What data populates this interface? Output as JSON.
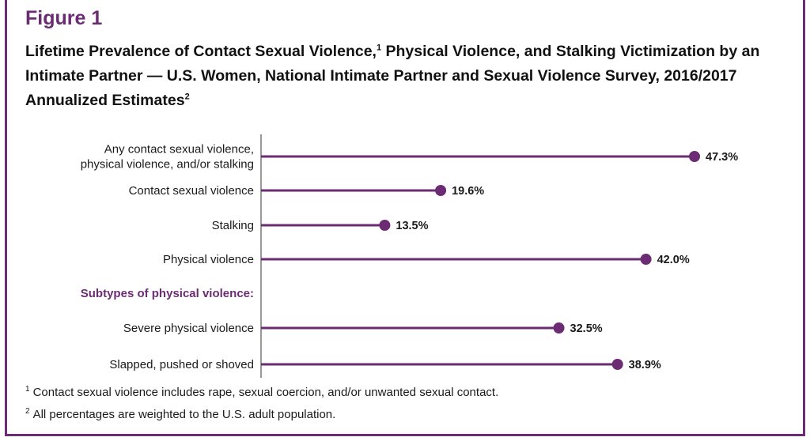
{
  "figure_label": "Figure 1",
  "title": {
    "part1": "Lifetime Prevalence of Contact Sexual Violence,",
    "sup1": "1",
    "part2": " Physical Violence, and Stalking Victimization by an Intimate Partner — U.S. Women, National Intimate Partner and Sexual Violence Survey, 2016/2017 Annualized Estimates",
    "sup2": "2"
  },
  "colors": {
    "accent": "#6b2c73"
  },
  "chart_data": {
    "type": "bar",
    "style": "lollipop",
    "orientation": "horizontal",
    "categories": [
      [
        "Any contact sexual violence,",
        "physical violence, and/or stalking"
      ],
      [
        "Contact sexual violence"
      ],
      [
        "Stalking"
      ],
      [
        "Physical violence"
      ],
      [
        "Severe physical violence"
      ],
      [
        "Slapped, pushed or shoved"
      ]
    ],
    "values": [
      47.3,
      19.6,
      13.5,
      42.0,
      32.5,
      38.9
    ],
    "value_labels": [
      "47.3%",
      "19.6%",
      "13.5%",
      "42.0%",
      "32.5%",
      "38.9%"
    ],
    "group_heading": "Subtypes of physical violence:",
    "group_heading_before_index": 4,
    "grid": false,
    "legend": "none"
  },
  "footnotes": [
    {
      "marker": "1",
      "text": "Contact sexual violence includes rape, sexual coercion, and/or unwanted sexual contact."
    },
    {
      "marker": "2",
      "text": "All percentages are weighted to the U.S. adult population."
    }
  ]
}
